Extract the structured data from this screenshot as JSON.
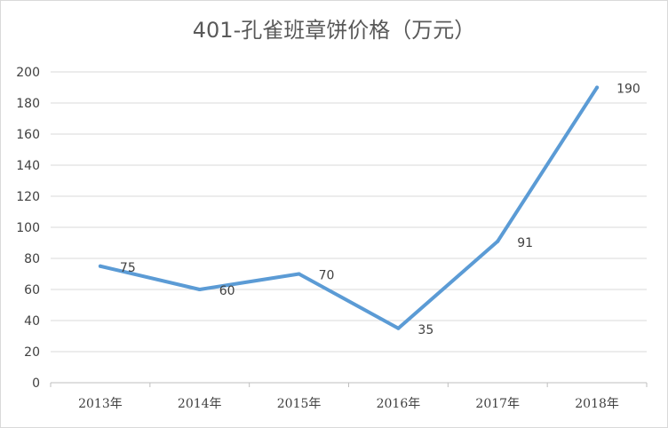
{
  "chart_data": {
    "type": "line",
    "title": "401-孔雀班章饼价格（万元）",
    "categories": [
      "2013年",
      "2014年",
      "2015年",
      "2016年",
      "2017年",
      "2018年"
    ],
    "series": [
      {
        "values": [
          75,
          60,
          70,
          35,
          91,
          190
        ],
        "color": "#5b9bd5"
      }
    ],
    "xlabel": "",
    "ylabel": "",
    "ylim": [
      0,
      200
    ],
    "yticks": [
      0,
      20,
      40,
      60,
      80,
      100,
      120,
      140,
      160,
      180,
      200
    ],
    "grid": true,
    "legend": "none",
    "data_labels": true,
    "gridline_color": "#d9d9d9",
    "axis_color": "#bfbfbf"
  }
}
